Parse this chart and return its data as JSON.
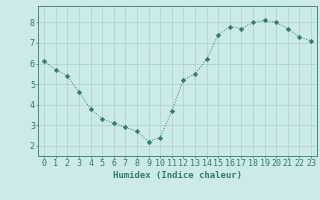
{
  "x": [
    0,
    1,
    2,
    3,
    4,
    5,
    6,
    7,
    8,
    9,
    10,
    11,
    12,
    13,
    14,
    15,
    16,
    17,
    18,
    19,
    20,
    21,
    22,
    23
  ],
  "y": [
    6.1,
    5.7,
    5.4,
    4.6,
    3.8,
    3.3,
    3.1,
    2.9,
    2.7,
    2.2,
    2.4,
    3.7,
    5.2,
    5.5,
    6.2,
    7.4,
    7.8,
    7.7,
    8.0,
    8.1,
    8.0,
    7.7,
    7.3,
    7.1
  ],
  "line_color": "#2e7d6e",
  "marker": "D",
  "marker_size": 2.2,
  "bg_color": "#cceaea",
  "grid_color": "#aacfcf",
  "xlabel": "Humidex (Indice chaleur)",
  "ylim": [
    1.5,
    8.8
  ],
  "xlim": [
    -0.5,
    23.5
  ],
  "yticks": [
    2,
    3,
    4,
    5,
    6,
    7,
    8
  ],
  "xticks": [
    0,
    1,
    2,
    3,
    4,
    5,
    6,
    7,
    8,
    9,
    10,
    11,
    12,
    13,
    14,
    15,
    16,
    17,
    18,
    19,
    20,
    21,
    22,
    23
  ],
  "xlabel_fontsize": 6.5,
  "tick_fontsize": 6.0,
  "tick_color": "#2e7d6e",
  "axis_color": "#2e7d6e",
  "linewidth": 0.7
}
